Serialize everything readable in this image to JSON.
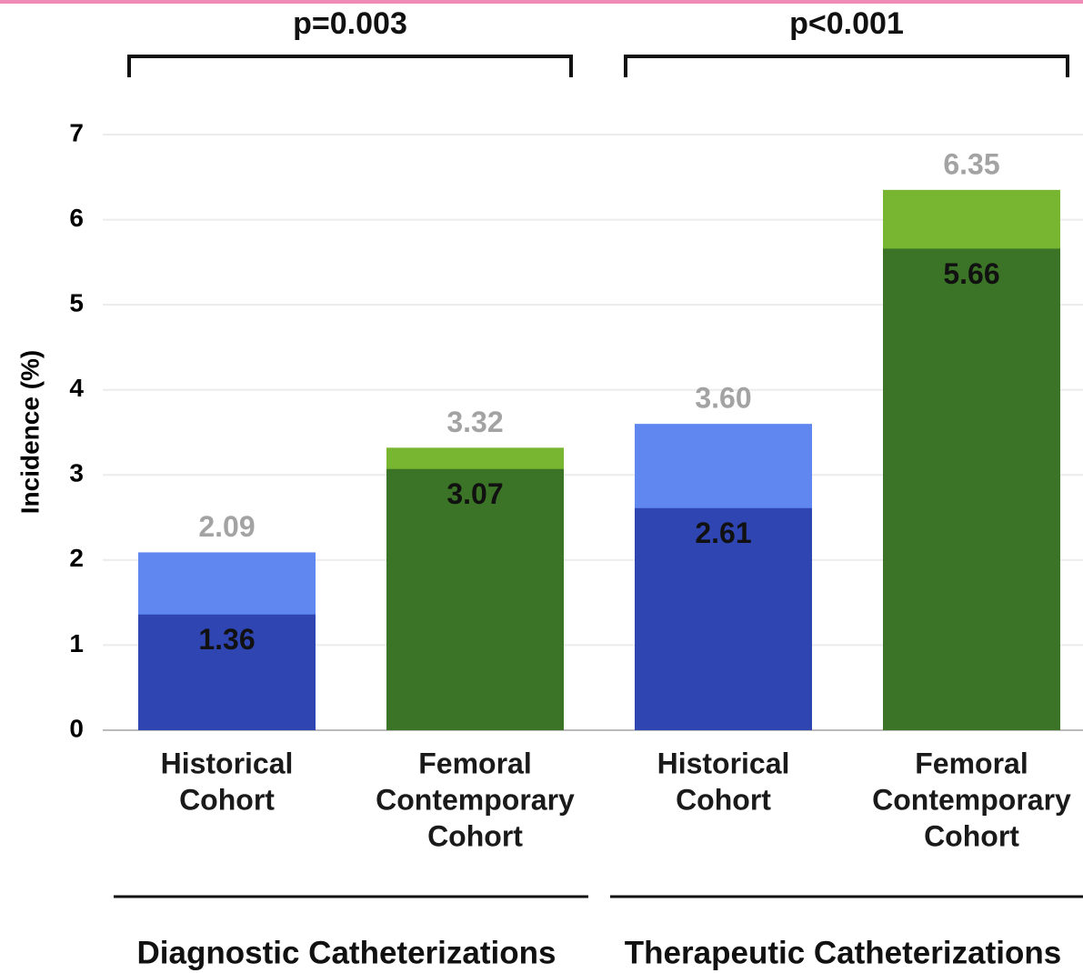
{
  "chart_data": {
    "type": "bar",
    "y_label": "Incidence (%)",
    "categories": [
      [
        "Historical",
        "Cohort"
      ],
      [
        "Femoral",
        "Contemporary",
        "Cohort"
      ],
      [
        "Historical",
        "Cohort"
      ],
      [
        "Femoral",
        "Contemporary",
        "Cohort"
      ]
    ],
    "groups": [
      {
        "label": "Diagnostic Catheterizations",
        "p_value": "p=0.003"
      },
      {
        "label": "Therapeutic Catheterizations",
        "p_value": "p<0.001"
      }
    ],
    "series": [
      {
        "colors": [
          "#5f87ef",
          "#78b632",
          "#5f87ef",
          "#78b632"
        ],
        "label_color": "#a3a3a3",
        "values": [
          2.09,
          3.32,
          3.6,
          6.35
        ],
        "value_labels": [
          "2.09",
          "3.32",
          "3.60",
          "6.35"
        ]
      },
      {
        "colors": [
          "#2f45b2",
          "#3b7426",
          "#2f45b2",
          "#3b7426"
        ],
        "label_color": "#111111",
        "values": [
          1.36,
          3.07,
          2.61,
          5.66
        ]
      }
    ],
    "ylim": [
      0,
      7
    ],
    "yticks": [
      0,
      1,
      2,
      3,
      4,
      5,
      6,
      7
    ],
    "grid": true
  }
}
